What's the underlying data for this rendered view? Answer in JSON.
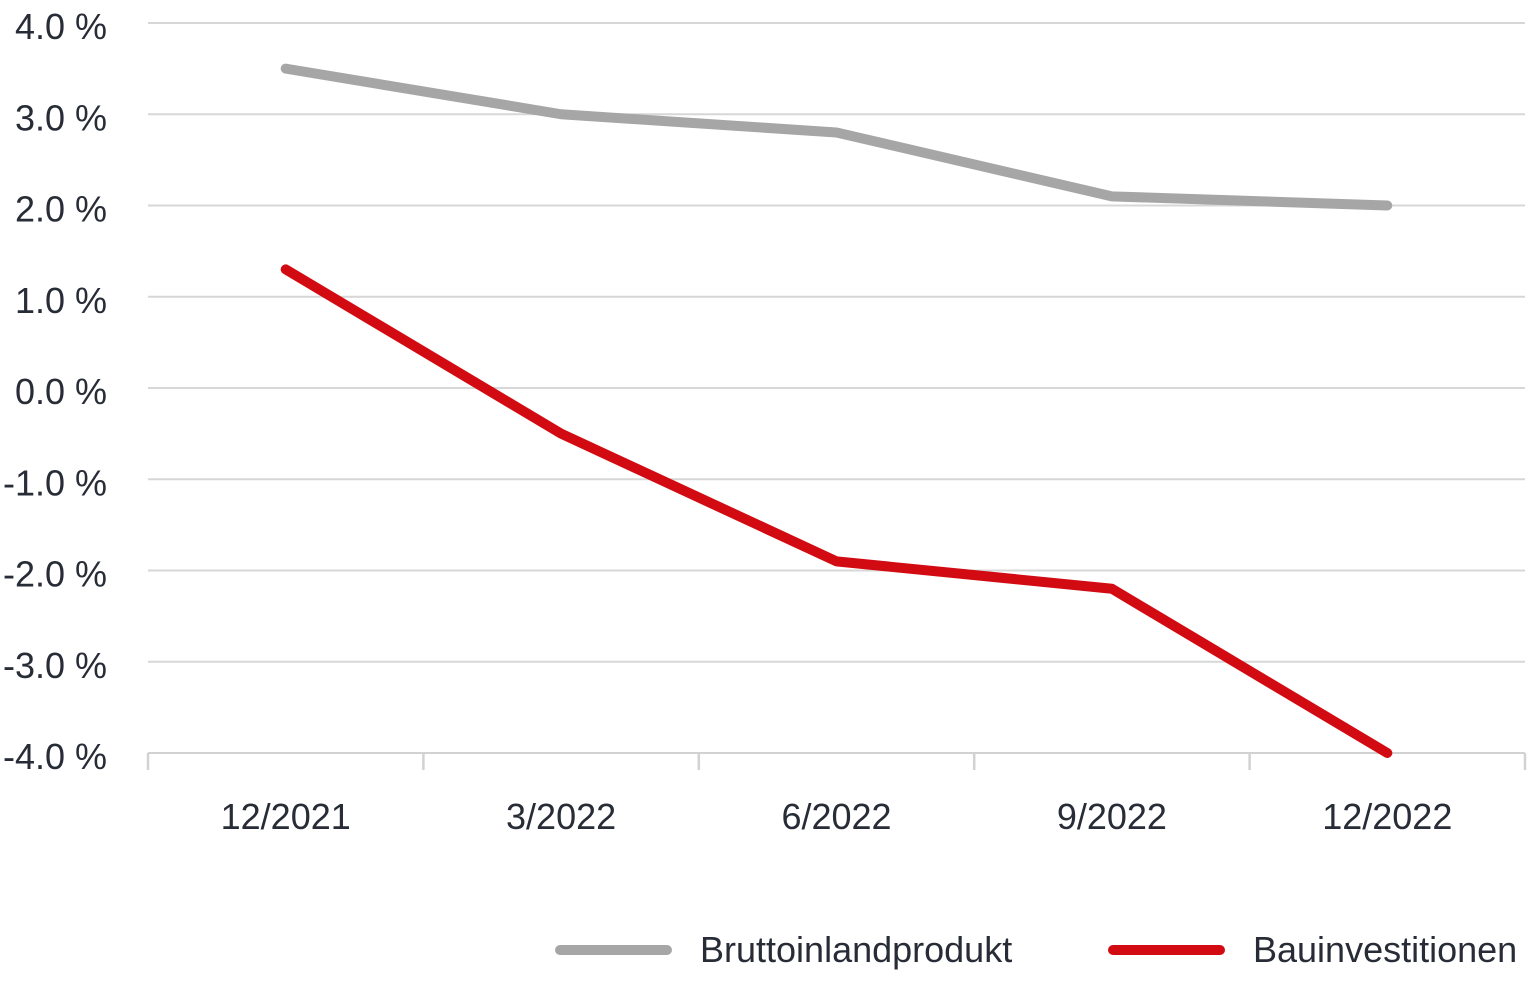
{
  "chart_data": {
    "type": "line",
    "categories": [
      "12/2021",
      "3/2022",
      "6/2022",
      "9/2022",
      "12/2022"
    ],
    "series": [
      {
        "name": "Bruttoinlandprodukt",
        "color": "#a6a6a6",
        "values": [
          3.5,
          3.0,
          2.8,
          2.1,
          2.0
        ]
      },
      {
        "name": "Bauinvestitionen",
        "color": "#d20a11",
        "values": [
          1.3,
          -0.5,
          -1.9,
          -2.2,
          -4.0
        ]
      }
    ],
    "title": "",
    "xlabel": "",
    "ylabel": "",
    "ylim": [
      -4.0,
      4.0
    ],
    "y_ticks": [
      {
        "value": 4.0,
        "label": "4.0 %"
      },
      {
        "value": 3.0,
        "label": "3.0 %"
      },
      {
        "value": 2.0,
        "label": "2.0 %"
      },
      {
        "value": 1.0,
        "label": "1.0 %"
      },
      {
        "value": 0.0,
        "label": "0.0 %"
      },
      {
        "value": -1.0,
        "label": "-1.0 %"
      },
      {
        "value": -2.0,
        "label": "-2.0 %"
      },
      {
        "value": -3.0,
        "label": "-3.0 %"
      },
      {
        "value": -4.0,
        "label": "-4.0 %"
      }
    ],
    "grid": true,
    "legend_position": "bottom",
    "colors": {
      "gridline": "#d7d7d7",
      "axis": "#d2d2d2",
      "text": "#272c37"
    }
  }
}
